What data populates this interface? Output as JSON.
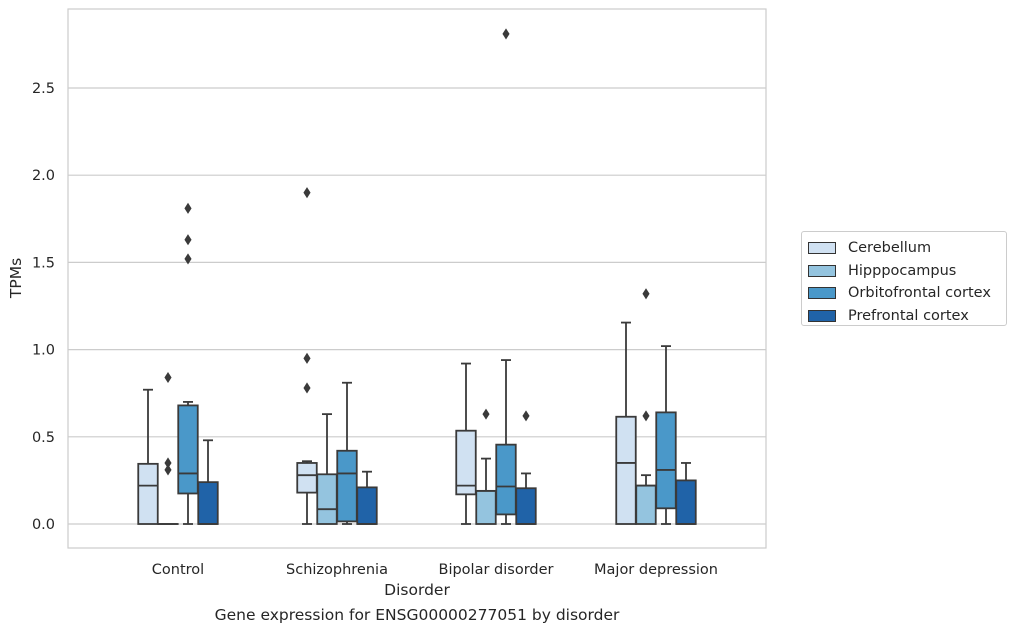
{
  "caption": "Gene expression for ENSG00000277051 by disorder",
  "chart_data": {
    "type": "box",
    "title": "",
    "xlabel": "Disorder",
    "ylabel": "TPMs",
    "ylim": [
      -0.13,
      2.96
    ],
    "yticks": [
      "0.0",
      "0.5",
      "1.0",
      "1.5",
      "2.0",
      "2.5"
    ],
    "grid": "horizontal",
    "legend_position": "right",
    "categories": [
      "Control",
      "Schizophrenia",
      "Bipolar disorder",
      "Major depression"
    ],
    "series": [
      {
        "name": "Cerebellum",
        "color": "#d0e1f2",
        "boxes": [
          {
            "whislo": 0.0,
            "q1": 0.0,
            "med": 0.22,
            "q3": 0.345,
            "whishi": 0.77,
            "fliers": []
          },
          {
            "whislo": 0.0,
            "q1": 0.18,
            "med": 0.28,
            "q3": 0.35,
            "whishi": 0.36,
            "fliers": [
              1.9,
              0.95,
              0.78
            ]
          },
          {
            "whislo": 0.0,
            "q1": 0.17,
            "med": 0.22,
            "q3": 0.535,
            "whishi": 0.92,
            "fliers": []
          },
          {
            "whislo": 0.0,
            "q1": 0.0,
            "med": 0.35,
            "q3": 0.615,
            "whishi": 1.155,
            "fliers": []
          }
        ]
      },
      {
        "name": "Hipppocampus",
        "color": "#94c4df",
        "boxes": [
          {
            "whislo": 0.0,
            "q1": 0.0,
            "med": 0.0,
            "q3": 0.0,
            "whishi": 0.0,
            "fliers": [
              0.84,
              0.35,
              0.31
            ]
          },
          {
            "whislo": 0.0,
            "q1": 0.0,
            "med": 0.085,
            "q3": 0.285,
            "whishi": 0.63,
            "fliers": []
          },
          {
            "whislo": 0.0,
            "q1": 0.0,
            "med": 0.19,
            "q3": 0.19,
            "whishi": 0.375,
            "fliers": [
              0.63
            ]
          },
          {
            "whislo": 0.0,
            "q1": 0.0,
            "med": 0.22,
            "q3": 0.22,
            "whishi": 0.28,
            "fliers": [
              1.32,
              0.62
            ]
          }
        ]
      },
      {
        "name": "Orbitofrontal cortex",
        "color": "#4a98c9",
        "boxes": [
          {
            "whislo": 0.0,
            "q1": 0.175,
            "med": 0.29,
            "q3": 0.68,
            "whishi": 0.7,
            "fliers": [
              1.81,
              1.63,
              1.52
            ]
          },
          {
            "whislo": 0.0,
            "q1": 0.015,
            "med": 0.29,
            "q3": 0.42,
            "whishi": 0.81,
            "fliers": []
          },
          {
            "whislo": 0.0,
            "q1": 0.055,
            "med": 0.215,
            "q3": 0.455,
            "whishi": 0.94,
            "fliers": [
              2.81
            ]
          },
          {
            "whislo": 0.0,
            "q1": 0.09,
            "med": 0.31,
            "q3": 0.64,
            "whishi": 1.02,
            "fliers": []
          }
        ]
      },
      {
        "name": "Prefrontal cortex",
        "color": "#2063a8",
        "boxes": [
          {
            "whislo": 0.0,
            "q1": 0.0,
            "med": 0.0,
            "q3": 0.24,
            "whishi": 0.48,
            "fliers": []
          },
          {
            "whislo": 0.0,
            "q1": 0.0,
            "med": 0.0,
            "q3": 0.21,
            "whishi": 0.3,
            "fliers": []
          },
          {
            "whislo": 0.0,
            "q1": 0.0,
            "med": 0.0,
            "q3": 0.205,
            "whishi": 0.29,
            "fliers": [
              0.62
            ]
          },
          {
            "whislo": 0.0,
            "q1": 0.0,
            "med": 0.0,
            "q3": 0.25,
            "whishi": 0.35,
            "fliers": []
          }
        ]
      }
    ]
  }
}
